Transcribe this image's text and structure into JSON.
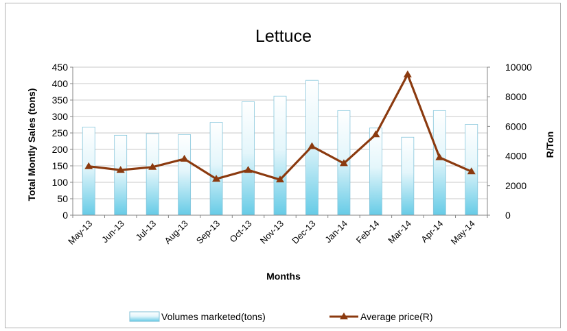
{
  "chart_data": {
    "type": "bar",
    "title": "Lettuce",
    "xlabel": "Months",
    "ylabel": "Total Montly Sales (tons)",
    "y2label": "R/Ton",
    "categories": [
      "May-13",
      "Jun-13",
      "Jul-13",
      "Aug-13",
      "Sep-13",
      "Oct-13",
      "Nov-13",
      "Dec-13",
      "Jan-14",
      "Feb-14",
      "Mar-14",
      "Apr-14",
      "May-14"
    ],
    "ylim": [
      0,
      450
    ],
    "y2lim": [
      0,
      10000
    ],
    "yticks": [
      "0",
      "50",
      "100",
      "150",
      "200",
      "250",
      "300",
      "350",
      "400",
      "450"
    ],
    "y2ticks": [
      "0",
      "2000",
      "4000",
      "6000",
      "8000",
      "10000"
    ],
    "grid": true,
    "legend_position": "bottom",
    "series": [
      {
        "name": "Volumes marketed(tons)",
        "type": "bar",
        "axis": "left",
        "color": "#7fd3ea",
        "values": [
          268,
          243,
          248,
          245,
          282,
          345,
          362,
          410,
          318,
          265,
          237,
          318,
          276
        ]
      },
      {
        "name": "Average price(R)",
        "type": "line",
        "axis": "right",
        "color": "#8b3a0f",
        "marker": "triangle",
        "values": [
          3300,
          3050,
          3250,
          3800,
          2450,
          3050,
          2400,
          4650,
          3500,
          5450,
          9500,
          3900,
          2950
        ]
      }
    ]
  }
}
